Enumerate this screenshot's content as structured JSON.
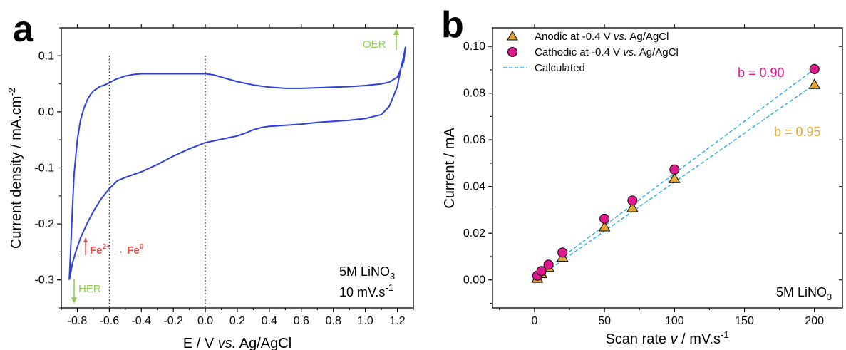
{
  "chart_data": [
    {
      "panel": "a",
      "type": "line",
      "xlabel_parts": [
        "E / V ",
        "vs.",
        " Ag/AgCl"
      ],
      "ylabel": "Current density / mA.cm",
      "ylabel_sup": "-2",
      "xlim": [
        -0.9,
        1.3
      ],
      "ylim": [
        -0.35,
        0.15
      ],
      "xticks": [
        -0.8,
        -0.6,
        -0.4,
        -0.2,
        0.0,
        0.2,
        0.4,
        0.6,
        0.8,
        1.0,
        1.2
      ],
      "xtick_labels": [
        "-0.8",
        "-0.6",
        "-0.4",
        "-0.2",
        "0.0",
        "0.2",
        "0.4",
        "0.6",
        "0.8",
        "1.0",
        "1.2"
      ],
      "yticks": [
        0.1,
        0.0,
        -0.1,
        -0.2,
        -0.3
      ],
      "ytick_labels": [
        "0.1",
        "0.0",
        "-0.1",
        "-0.2",
        "-0.3"
      ],
      "vlines": [
        -0.6,
        0.0
      ],
      "series": [
        {
          "color": "#2d3fe0",
          "x": [
            -0.85,
            -0.84,
            -0.83,
            -0.82,
            -0.8,
            -0.78,
            -0.76,
            -0.74,
            -0.72,
            -0.7,
            -0.66,
            -0.62,
            -0.6,
            -0.56,
            -0.5,
            -0.44,
            -0.4,
            -0.3,
            -0.2,
            -0.1,
            0.0,
            0.05,
            0.1,
            0.2,
            0.3,
            0.4,
            0.5,
            0.6,
            0.7,
            0.8,
            0.9,
            1.0,
            1.1,
            1.15,
            1.2,
            1.24,
            1.25,
            1.24,
            1.22,
            1.2,
            1.15,
            1.1,
            1.0,
            0.9,
            0.8,
            0.7,
            0.6,
            0.5,
            0.4,
            0.35,
            0.3,
            0.25,
            0.2,
            0.1,
            0.0,
            -0.1,
            -0.2,
            -0.3,
            -0.4,
            -0.45,
            -0.5,
            -0.55,
            -0.6,
            -0.65,
            -0.7,
            -0.74,
            -0.78,
            -0.81,
            -0.83,
            -0.84,
            -0.85
          ],
          "y": [
            -0.3,
            -0.235,
            -0.17,
            -0.11,
            -0.05,
            -0.015,
            0.005,
            0.02,
            0.03,
            0.037,
            0.045,
            0.049,
            0.052,
            0.058,
            0.064,
            0.067,
            0.068,
            0.068,
            0.068,
            0.068,
            0.068,
            0.066,
            0.062,
            0.054,
            0.048,
            0.044,
            0.042,
            0.042,
            0.043,
            0.044,
            0.045,
            0.047,
            0.05,
            0.053,
            0.062,
            0.09,
            0.115,
            0.1,
            0.075,
            0.045,
            0.01,
            -0.005,
            -0.012,
            -0.015,
            -0.017,
            -0.019,
            -0.022,
            -0.024,
            -0.026,
            -0.028,
            -0.032,
            -0.038,
            -0.043,
            -0.049,
            -0.055,
            -0.066,
            -0.079,
            -0.094,
            -0.107,
            -0.112,
            -0.117,
            -0.123,
            -0.137,
            -0.155,
            -0.178,
            -0.2,
            -0.225,
            -0.25,
            -0.27,
            -0.285,
            -0.3
          ]
        }
      ],
      "annotations": {
        "oer": "OER",
        "her": "HER",
        "fe_from": "Fe",
        "fe_from_sup": "2+",
        "fe_arrow": " → Fe",
        "fe_to_sup": "0",
        "electrolyte_main": "5M LiNO",
        "electrolyte_sub": "3",
        "rate": "10 mV.s",
        "rate_sup": "-1"
      }
    },
    {
      "panel": "b",
      "type": "scatter",
      "xlabel_parts": [
        "Scan rate ",
        "v",
        " / mV.s"
      ],
      "xlabel_sup": "-1",
      "ylabel": "Current / mA",
      "xlim": [
        -30,
        220
      ],
      "ylim": [
        -0.012,
        0.108
      ],
      "xticks": [
        0,
        50,
        100,
        150,
        200
      ],
      "xtick_labels": [
        "0",
        "50",
        "100",
        "150",
        "200"
      ],
      "yticks": [
        0.0,
        0.02,
        0.04,
        0.06,
        0.08,
        0.1
      ],
      "ytick_labels": [
        "0.00",
        "0.02",
        "0.04",
        "0.06",
        "0.08",
        "0.10"
      ],
      "series": [
        {
          "legend_parts": [
            "Anodic at -0.4 V ",
            "vs.",
            " Ag/AgCl"
          ],
          "marker": "triangle",
          "color": "#e3a733",
          "x": [
            2,
            5,
            10,
            20,
            50,
            70,
            100,
            200
          ],
          "y": [
            0.0008,
            0.0028,
            0.0055,
            0.0098,
            0.0228,
            0.031,
            0.0435,
            0.0838
          ]
        },
        {
          "legend_parts": [
            "Cathodic at -0.4 V ",
            "vs.",
            " Ag/AgCl"
          ],
          "marker": "circle",
          "color": "#e01890",
          "x": [
            2,
            5,
            10,
            20,
            50,
            70,
            100,
            200
          ],
          "y": [
            0.0018,
            0.0038,
            0.0065,
            0.0117,
            0.0262,
            0.034,
            0.0473,
            0.0903
          ]
        }
      ],
      "fit_lines": [
        {
          "color": "#29abe2",
          "x": [
            2,
            200
          ],
          "y": [
            0.0008,
            0.0838
          ]
        },
        {
          "color": "#29abe2",
          "x": [
            2,
            200
          ],
          "y": [
            0.0018,
            0.0903
          ]
        }
      ],
      "fit_legend": "Calculated",
      "annotations": {
        "b_cathodic": "b = 0.90",
        "b_cathodic_color": "#e01890",
        "b_anodic": "b = 0.95",
        "b_anodic_color": "#e3a733",
        "electrolyte_main": "5M LiNO",
        "electrolyte_sub": "3"
      }
    }
  ],
  "colors": {
    "oer_arrow": "#8fd14f",
    "her_arrow": "#8fd14f",
    "fe_text": "#f04848"
  }
}
